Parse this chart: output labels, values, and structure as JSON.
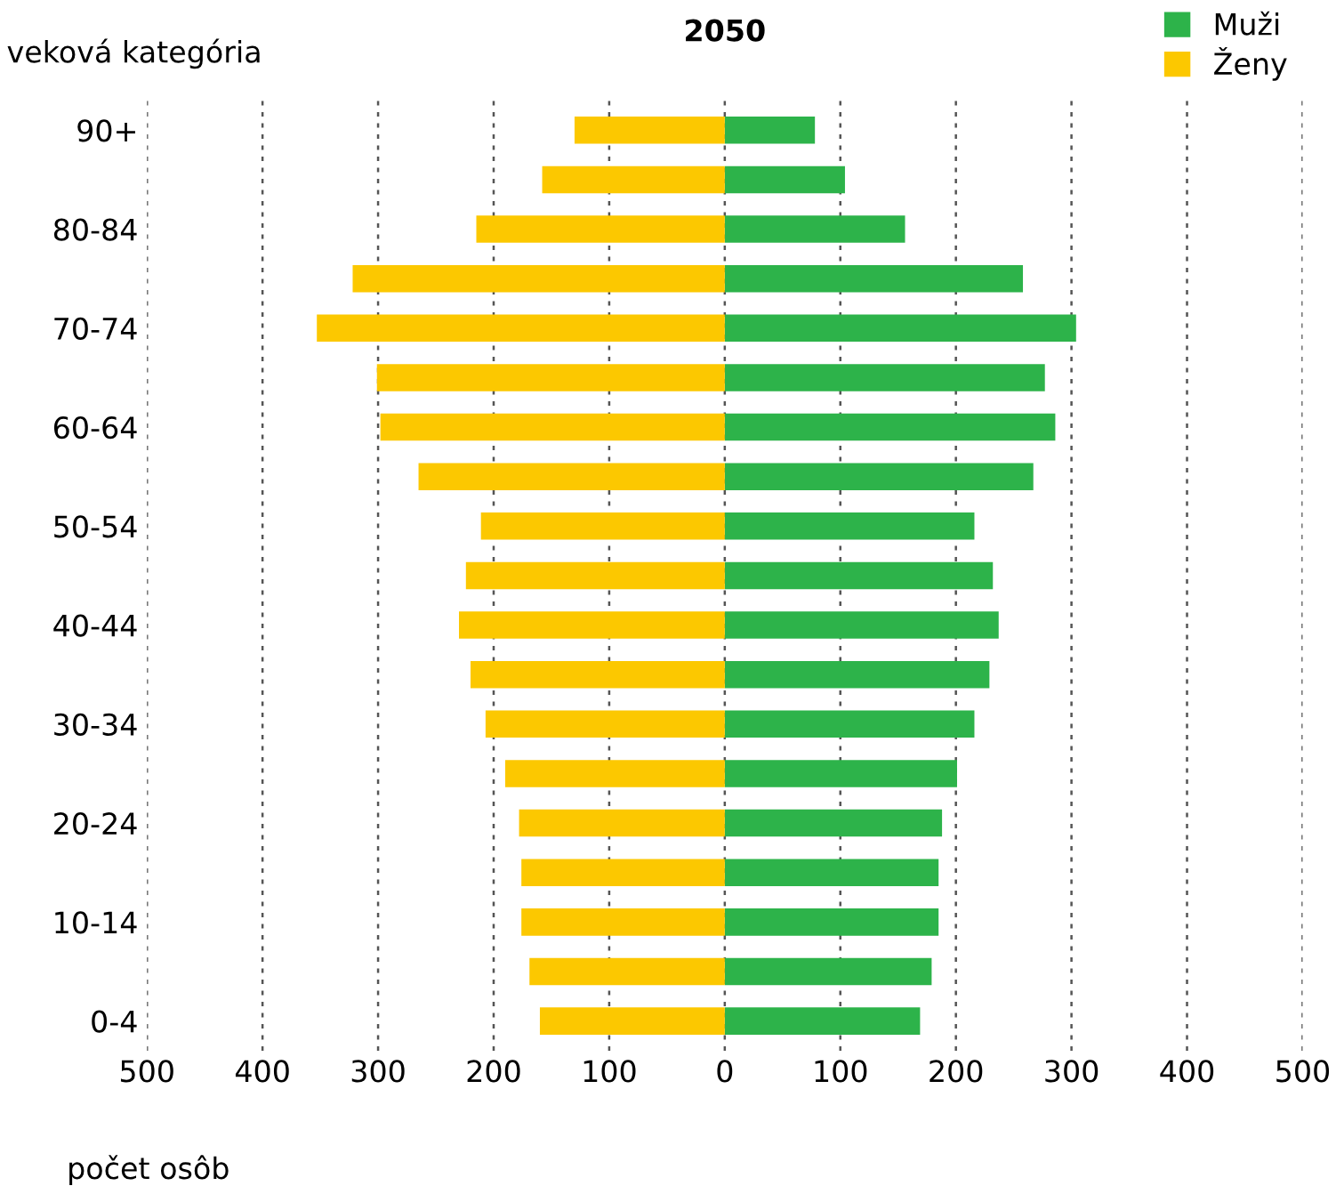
{
  "chart_data": {
    "type": "bar",
    "orientation": "horizontal",
    "title": "2050",
    "ylabel": "veková kategória",
    "xlabel": "počet osôb",
    "categories": [
      "90+",
      null,
      "80-84",
      null,
      "70-74",
      null,
      "60-64",
      null,
      "50-54",
      null,
      "40-44",
      null,
      "30-34",
      null,
      "20-24",
      null,
      "10-14",
      null,
      "0-4"
    ],
    "series": [
      {
        "name": "Muži",
        "color": "#2db34a",
        "values": [
          78,
          104,
          156,
          258,
          304,
          277,
          286,
          267,
          216,
          232,
          237,
          229,
          216,
          201,
          188,
          185,
          185,
          179,
          169
        ]
      },
      {
        "name": "Ženy",
        "color": "#fcc800",
        "values": [
          -130,
          -158,
          -215,
          -322,
          -353,
          -301,
          -298,
          -265,
          -211,
          -224,
          -230,
          -220,
          -207,
          -190,
          -178,
          -176,
          -176,
          -169,
          -160
        ]
      }
    ],
    "xlim": [
      -500,
      500
    ],
    "xticks": [
      {
        "value": -500,
        "label": "500"
      },
      {
        "value": -400,
        "label": "400"
      },
      {
        "value": -300,
        "label": "300"
      },
      {
        "value": -200,
        "label": "200"
      },
      {
        "value": -100,
        "label": "100"
      },
      0,
      100,
      200,
      300,
      400,
      500
    ],
    "stacked": true,
    "grid": "x",
    "legend": "top right"
  }
}
